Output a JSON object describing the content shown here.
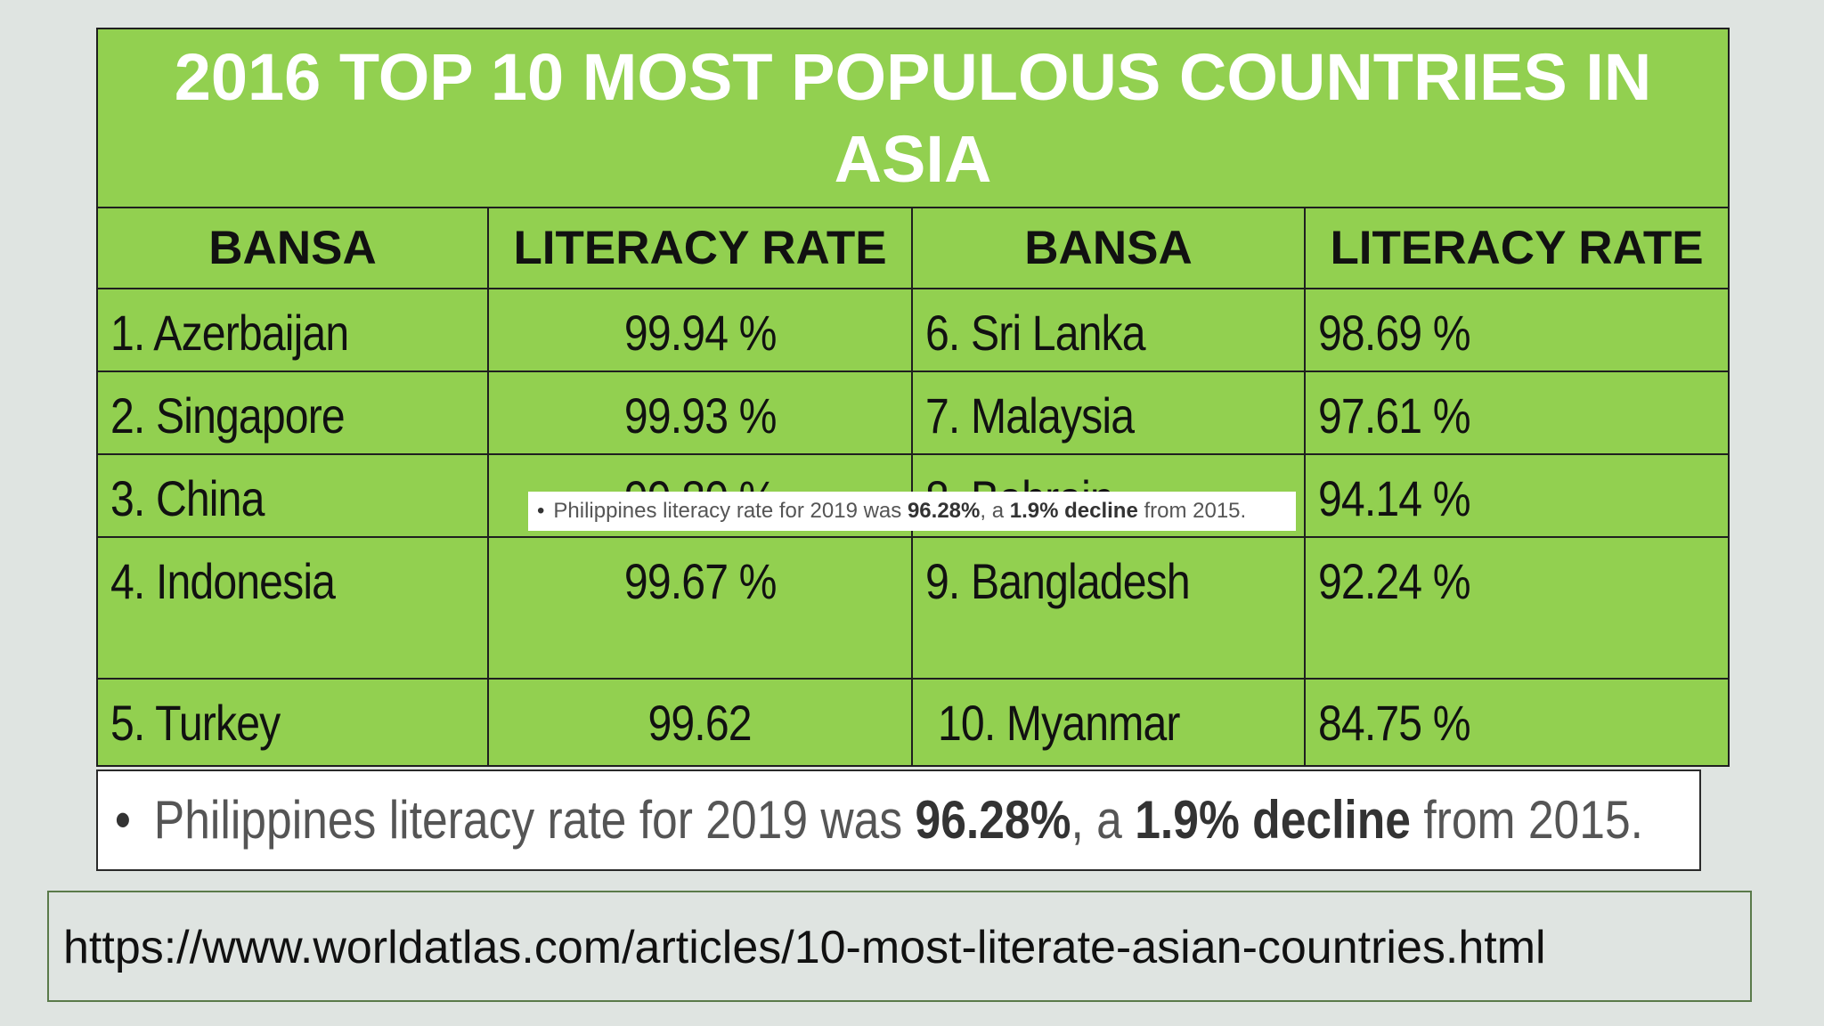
{
  "title": "2016 TOP 10 MOST POPULOUS COUNTRIES IN ASIA",
  "headers": [
    "BANSA",
    "LITERACY RATE",
    "BANSA",
    "LITERACY RATE"
  ],
  "rows": [
    {
      "country_left": "1. Azerbaijan",
      "rate_left": "99.94 %",
      "country_right": "6. Sri Lanka",
      "rate_right": "98.69 %"
    },
    {
      "country_left": "2. Singapore",
      "rate_left": "99.93 %",
      "country_right": "7. Malaysia",
      "rate_right": "97.61 %"
    },
    {
      "country_left": "3. China",
      "rate_left": "99.80 %",
      "country_right": "8. Bahrain",
      "rate_right": "94.14 %"
    },
    {
      "country_left": "4. Indonesia",
      "rate_left": "99.67 %",
      "country_right": "9. Bangladesh",
      "rate_right": "92.24 %"
    },
    {
      "country_left": "5. Turkey",
      "rate_left": "99.62",
      "country_right": "10. Myanmar",
      "rate_right": "84.75 %"
    }
  ],
  "note": {
    "bullet": "•",
    "text_1": "Philippines literacy rate for 2019 was ",
    "rate": "96.28%",
    "text_2": ", a ",
    "change": "1.9% decline",
    "text_3": " from 2015."
  },
  "source_url": "https://www.worldatlas.com/articles/10-most-literate-asian-countries.html"
}
